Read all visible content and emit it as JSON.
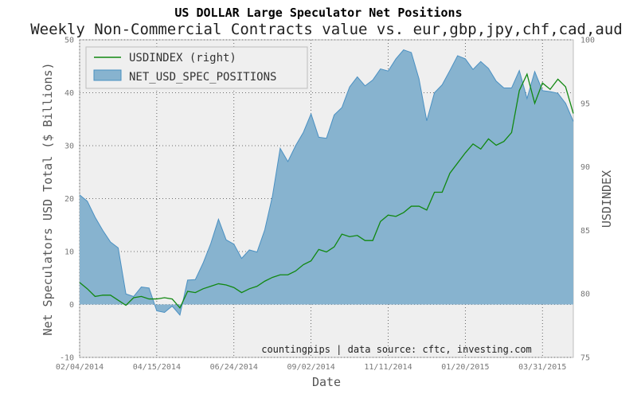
{
  "chart_data": {
    "type": "area",
    "title": "US DOLLAR Large Speculator Net Positions",
    "subtitle": "Weekly Non-Commercial Contracts value vs. eur,gbp,jpy,chf,cad,aud",
    "xlabel": "Date",
    "ylabel": "Net Speculators USD Total ($ Billions)",
    "ylabel_right": "USDINDEX",
    "ylim": [
      -10,
      50
    ],
    "ylim_right": [
      75,
      100
    ],
    "yticks": [
      -10,
      0,
      10,
      20,
      30,
      40,
      50
    ],
    "yticks_right": [
      75,
      80,
      85,
      90,
      95,
      100
    ],
    "x_tick_labels": [
      "02/04/2014",
      "04/15/2014",
      "06/24/2014",
      "09/02/2014",
      "11/11/2014",
      "01/20/2015",
      "03/31/2015"
    ],
    "grid": true,
    "legend_position": "top-left",
    "annotation": "countingpips | data source: cftc, investing.com",
    "colors": {
      "area": "#87b3cf",
      "area_edge": "#4a90c2",
      "line": "#118811",
      "background": "#efefef"
    },
    "x": [
      "02/04/2014",
      "02/11/2014",
      "02/18/2014",
      "02/25/2014",
      "03/04/2014",
      "03/11/2014",
      "03/18/2014",
      "03/25/2014",
      "04/01/2014",
      "04/08/2014",
      "04/15/2014",
      "04/22/2014",
      "04/29/2014",
      "05/06/2014",
      "05/13/2014",
      "05/20/2014",
      "05/27/2014",
      "06/03/2014",
      "06/10/2014",
      "06/17/2014",
      "06/24/2014",
      "07/01/2014",
      "07/08/2014",
      "07/15/2014",
      "07/22/2014",
      "07/29/2014",
      "08/05/2014",
      "08/12/2014",
      "08/19/2014",
      "08/26/2014",
      "09/02/2014",
      "09/09/2014",
      "09/16/2014",
      "09/23/2014",
      "09/30/2014",
      "10/07/2014",
      "10/14/2014",
      "10/21/2014",
      "10/28/2014",
      "11/04/2014",
      "11/11/2014",
      "11/18/2014",
      "11/25/2014",
      "12/02/2014",
      "12/09/2014",
      "12/16/2014",
      "12/23/2014",
      "12/30/2014",
      "01/06/2015",
      "01/13/2015",
      "01/20/2015",
      "01/27/2015",
      "02/03/2015",
      "02/10/2015",
      "02/17/2015",
      "02/24/2015",
      "03/03/2015",
      "03/10/2015",
      "03/17/2015",
      "03/24/2015",
      "03/31/2015",
      "04/07/2015",
      "04/14/2015",
      "04/21/2015",
      "04/28/2015"
    ],
    "series": [
      {
        "name": "NET_USD_SPEC_POSITIONS",
        "axis": "left",
        "values": [
          20.7,
          19.5,
          16.5,
          14.0,
          11.8,
          10.7,
          2.0,
          1.5,
          3.3,
          3.1,
          -1.2,
          -1.5,
          -0.3,
          -2.0,
          4.6,
          4.7,
          7.8,
          11.5,
          16.1,
          12.2,
          11.4,
          8.7,
          10.3,
          9.9,
          14.1,
          20.5,
          29.5,
          27.0,
          30.0,
          32.5,
          36.0,
          31.6,
          31.4,
          35.8,
          37.2,
          41.1,
          43.0,
          41.3,
          42.4,
          44.5,
          44.1,
          46.4,
          48.1,
          47.6,
          42.6,
          34.7,
          40.0,
          41.5,
          44.2,
          47.0,
          46.4,
          44.4,
          45.9,
          44.6,
          42.2,
          40.9,
          40.9,
          44.2,
          38.9,
          44.0,
          40.4,
          40.2,
          39.9,
          38.0,
          34.6
        ]
      },
      {
        "name": "USDINDEX (right)",
        "axis": "right",
        "values": [
          80.9,
          80.4,
          79.8,
          79.9,
          79.9,
          79.5,
          79.1,
          79.7,
          79.8,
          79.6,
          79.6,
          79.7,
          79.6,
          78.9,
          80.2,
          80.1,
          80.4,
          80.6,
          80.8,
          80.7,
          80.5,
          80.1,
          80.4,
          80.6,
          81.0,
          81.3,
          81.5,
          81.5,
          81.8,
          82.3,
          82.6,
          83.5,
          83.3,
          83.7,
          84.7,
          84.5,
          84.6,
          84.2,
          84.2,
          85.7,
          86.2,
          86.1,
          86.4,
          86.9,
          86.9,
          86.6,
          88.0,
          88.0,
          89.5,
          90.3,
          91.1,
          91.8,
          91.4,
          92.2,
          91.7,
          92.0,
          92.7,
          96.0,
          97.3,
          95.0,
          96.6,
          96.1,
          96.9,
          96.3,
          94.2
        ]
      }
    ]
  }
}
